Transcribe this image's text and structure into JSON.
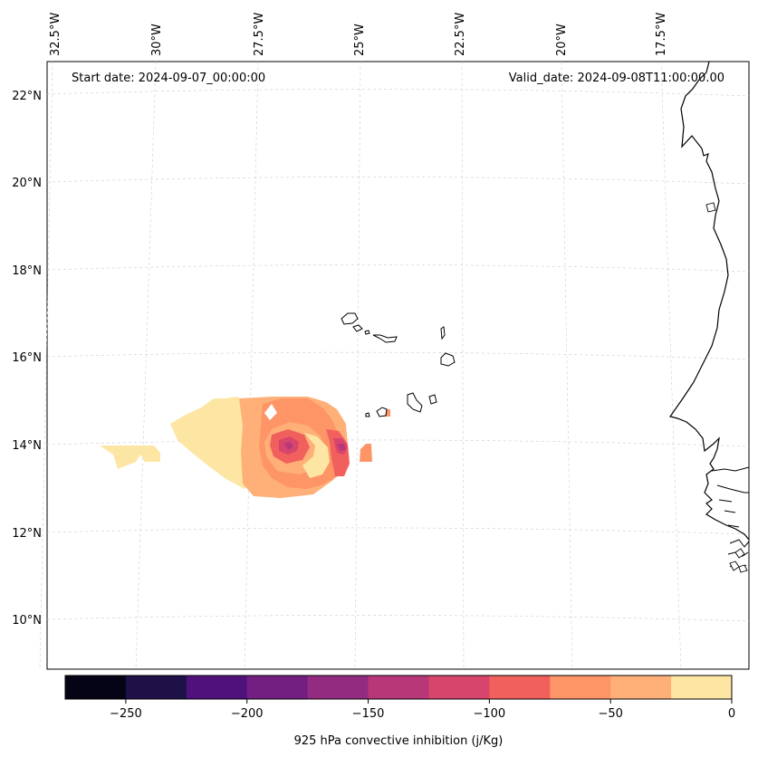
{
  "map": {
    "start_label": "Start date: 2024-09-07_00:00:00",
    "valid_label": "Valid_date: 2024-09-08T11:00:00.00",
    "lon_labels": [
      "32.5°W",
      "30°W",
      "27.5°W",
      "25°W",
      "22.5°W",
      "20°W",
      "17.5°W"
    ],
    "lat_labels": [
      "22°N",
      "20°N",
      "18°N",
      "16°N",
      "14°N",
      "12°N",
      "10°N"
    ],
    "colorbar": {
      "label": "925 hPa convective inhibition (j/Kg)",
      "tick_labels": [
        "−250",
        "−200",
        "−150",
        "−100",
        "−50",
        "0"
      ],
      "levels": [
        -275,
        -250,
        -225,
        -200,
        -175,
        -150,
        -125,
        -100,
        -75,
        -50,
        -25,
        0
      ],
      "colors": [
        "#050416",
        "#1d1147",
        "#4f127b",
        "#721f81",
        "#932b80",
        "#b73779",
        "#d8456c",
        "#f1605d",
        "#fd9567",
        "#feb078",
        "#fde6a3"
      ]
    }
  }
}
